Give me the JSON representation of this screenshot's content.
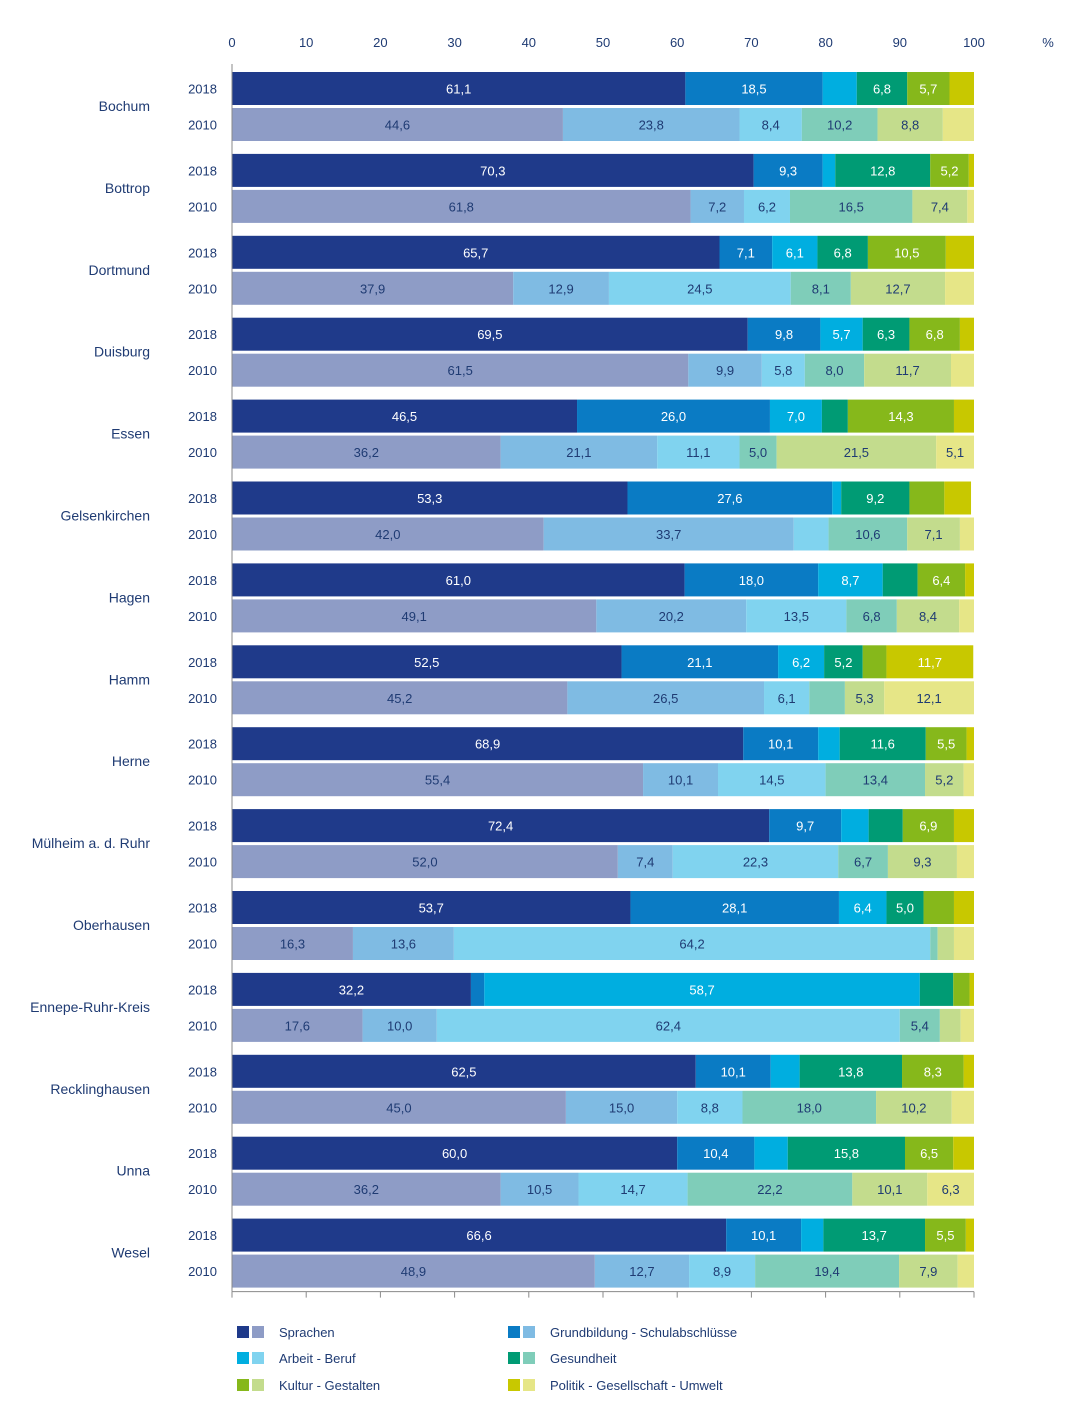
{
  "chart_data": {
    "type": "bar",
    "orientation": "horizontal",
    "stacked": true,
    "unit_label": "%",
    "xlim": [
      0,
      100
    ],
    "x_ticks": [
      "0",
      "10",
      "20",
      "30",
      "40",
      "50",
      "60",
      "70",
      "80",
      "90",
      "100"
    ],
    "label_min": 5,
    "categories_order": [
      "Sprachen",
      "Grundbildung - Schulabschlüsse",
      "Arbeit - Beruf",
      "Gesundheit",
      "Kultur - Gestalten",
      "Politik - Gesellschaft - Umwelt"
    ],
    "colors": {
      "2018": [
        "#1f3a8a",
        "#0a7bc4",
        "#00aee0",
        "#009b74",
        "#86b81b",
        "#c8c800"
      ],
      "2010": [
        "#8e9cc6",
        "#7fbbe3",
        "#80d3ef",
        "#7fcdb9",
        "#c3dc8d",
        "#e6e687"
      ]
    },
    "label_colors": {
      "2018": [
        "#ffffff",
        "#ffffff",
        "#ffffff",
        "#ffffff",
        "#ffffff",
        "#ffffff"
      ],
      "2010": [
        "#1f3b73",
        "#1f3b73",
        "#1f3b73",
        "#1f3b73",
        "#1f3b73",
        "#1f3b73"
      ]
    },
    "groups": [
      {
        "name": "Bochum",
        "rows": [
          {
            "year": "2018",
            "values": [
              61.1,
              18.5,
              4.6,
              6.8,
              5.7,
              3.3
            ]
          },
          {
            "year": "2010",
            "values": [
              44.6,
              23.8,
              8.4,
              10.2,
              8.8,
              4.2
            ]
          }
        ]
      },
      {
        "name": "Bottrop",
        "rows": [
          {
            "year": "2018",
            "values": [
              70.3,
              9.3,
              1.7,
              12.8,
              5.2,
              0.7
            ]
          },
          {
            "year": "2010",
            "values": [
              61.8,
              7.2,
              6.2,
              16.5,
              7.4,
              0.9
            ]
          }
        ]
      },
      {
        "name": "Dortmund",
        "rows": [
          {
            "year": "2018",
            "values": [
              65.7,
              7.1,
              6.1,
              6.8,
              10.5,
              3.8
            ]
          },
          {
            "year": "2010",
            "values": [
              37.9,
              12.9,
              24.5,
              8.1,
              12.7,
              3.9
            ]
          }
        ]
      },
      {
        "name": "Duisburg",
        "rows": [
          {
            "year": "2018",
            "values": [
              69.5,
              9.8,
              5.7,
              6.3,
              6.8,
              1.9
            ]
          },
          {
            "year": "2010",
            "values": [
              61.5,
              9.9,
              5.8,
              8.0,
              11.7,
              3.1
            ]
          }
        ]
      },
      {
        "name": "Essen",
        "rows": [
          {
            "year": "2018",
            "values": [
              46.5,
              26.0,
              7.0,
              3.5,
              14.3,
              2.7
            ]
          },
          {
            "year": "2010",
            "values": [
              36.2,
              21.1,
              11.1,
              5.0,
              21.5,
              5.1
            ]
          }
        ]
      },
      {
        "name": "Gelsenkirchen",
        "rows": [
          {
            "year": "2018",
            "values": [
              53.3,
              27.6,
              1.2,
              9.2,
              4.7,
              3.6
            ]
          },
          {
            "year": "2010",
            "values": [
              42.0,
              33.7,
              4.7,
              10.6,
              7.1,
              1.9
            ]
          }
        ]
      },
      {
        "name": "Hagen",
        "rows": [
          {
            "year": "2018",
            "values": [
              61.0,
              18.0,
              8.7,
              4.7,
              6.4,
              1.2
            ]
          },
          {
            "year": "2010",
            "values": [
              49.1,
              20.2,
              13.5,
              6.8,
              8.4,
              2.0
            ]
          }
        ]
      },
      {
        "name": "Hamm",
        "rows": [
          {
            "year": "2018",
            "values": [
              52.5,
              21.1,
              6.2,
              5.2,
              3.2,
              11.7
            ]
          },
          {
            "year": "2010",
            "values": [
              45.2,
              26.5,
              6.1,
              4.8,
              5.3,
              12.1
            ]
          }
        ]
      },
      {
        "name": "Herne",
        "rows": [
          {
            "year": "2018",
            "values": [
              68.9,
              10.1,
              2.9,
              11.6,
              5.5,
              1.0
            ]
          },
          {
            "year": "2010",
            "values": [
              55.4,
              10.1,
              14.5,
              13.4,
              5.2,
              1.4
            ]
          }
        ]
      },
      {
        "name": "Mülheim a. d. Ruhr",
        "rows": [
          {
            "year": "2018",
            "values": [
              72.4,
              9.7,
              3.7,
              4.6,
              6.9,
              2.7
            ]
          },
          {
            "year": "2010",
            "values": [
              52.0,
              7.4,
              22.3,
              6.7,
              9.3,
              2.3
            ]
          }
        ]
      },
      {
        "name": "Oberhausen",
        "rows": [
          {
            "year": "2018",
            "values": [
              53.7,
              28.1,
              6.4,
              5.0,
              4.1,
              2.7
            ]
          },
          {
            "year": "2010",
            "values": [
              16.3,
              13.6,
              64.2,
              1.0,
              2.2,
              2.7
            ]
          }
        ]
      },
      {
        "name": "Ennepe-Ruhr-Kreis",
        "rows": [
          {
            "year": "2018",
            "values": [
              32.2,
              1.8,
              58.7,
              4.5,
              2.2,
              0.6
            ]
          },
          {
            "year": "2010",
            "values": [
              17.6,
              10.0,
              62.4,
              5.4,
              2.8,
              1.8
            ]
          }
        ]
      },
      {
        "name": "Recklinghausen",
        "rows": [
          {
            "year": "2018",
            "values": [
              62.5,
              10.1,
              3.9,
              13.8,
              8.3,
              1.4
            ]
          },
          {
            "year": "2010",
            "values": [
              45.0,
              15.0,
              8.8,
              18.0,
              10.2,
              3.0
            ]
          }
        ]
      },
      {
        "name": "Unna",
        "rows": [
          {
            "year": "2018",
            "values": [
              60.0,
              10.4,
              4.5,
              15.8,
              6.5,
              2.8
            ]
          },
          {
            "year": "2010",
            "values": [
              36.2,
              10.5,
              14.7,
              22.2,
              10.1,
              6.3
            ]
          }
        ]
      },
      {
        "name": "Wesel",
        "rows": [
          {
            "year": "2018",
            "values": [
              66.6,
              10.1,
              3.0,
              13.7,
              5.5,
              1.1
            ]
          },
          {
            "year": "2010",
            "values": [
              48.9,
              12.7,
              8.9,
              19.4,
              7.9,
              2.2
            ]
          }
        ]
      }
    ],
    "legend": {
      "placement": "bottom",
      "items": [
        {
          "label": "Sprachen",
          "category_index": 0
        },
        {
          "label": "Grundbildung - Schulabschlüsse",
          "category_index": 1
        },
        {
          "label": "Arbeit - Beruf",
          "category_index": 2
        },
        {
          "label": "Gesundheit",
          "category_index": 3
        },
        {
          "label": "Kultur - Gestalten",
          "category_index": 4
        },
        {
          "label": "Politik - Gesellschaft - Umwelt",
          "category_index": 5
        }
      ]
    }
  }
}
